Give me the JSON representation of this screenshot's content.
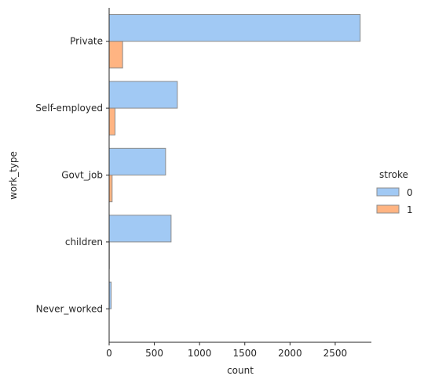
{
  "chart_data": {
    "type": "bar",
    "orientation": "horizontal",
    "categories": [
      "Private",
      "Self-employed",
      "Govt_job",
      "children",
      "Never_worked"
    ],
    "series": [
      {
        "name": "0",
        "values": [
          2776,
          754,
          624,
          685,
          22
        ],
        "color": "#a1c9f4"
      },
      {
        "name": "1",
        "values": [
          149,
          65,
          33,
          2,
          0
        ],
        "color": "#ffb482"
      }
    ],
    "xlabel": "count",
    "ylabel": "work_type",
    "xlim": [
      0,
      2900
    ],
    "xticks": [
      0,
      500,
      1000,
      1500,
      2000,
      2500
    ],
    "legend": {
      "title": "stroke",
      "placement": "right"
    },
    "grid": false
  }
}
